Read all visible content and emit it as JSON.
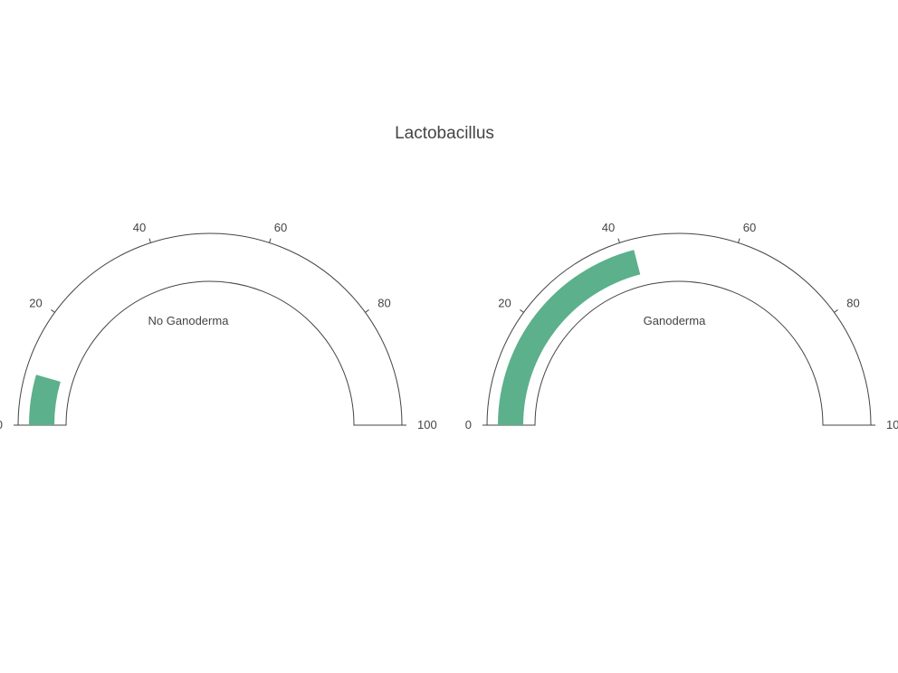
{
  "chart_data": {
    "type": "gauge",
    "title": "Lactobacillus",
    "bar_color": "#5cb08b",
    "axis_color": "#444444",
    "range": [
      0,
      100
    ],
    "tick_values": [
      0,
      20,
      40,
      60,
      80,
      100
    ],
    "tick_labels": [
      "0",
      "20",
      "40",
      "60",
      "80",
      "100"
    ],
    "gauges": [
      {
        "label": "No Ganoderma",
        "value": 9
      },
      {
        "label": "Ganoderma",
        "value": 42
      }
    ]
  }
}
